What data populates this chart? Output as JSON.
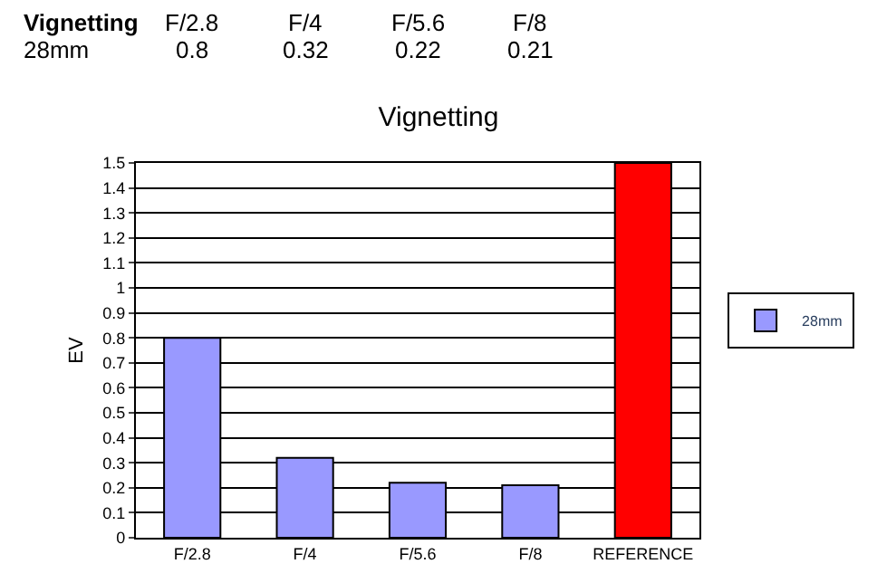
{
  "chart_data": {
    "type": "bar",
    "title": "Vignetting",
    "ylabel": "EV",
    "categories": [
      "F/2.8",
      "F/4",
      "F/5.6",
      "F/8",
      "REFERENCE"
    ],
    "series": [
      {
        "name": "28mm",
        "colors": [
          "#9999ff",
          "#9999ff",
          "#9999ff",
          "#9999ff",
          "#ff0000"
        ],
        "values": [
          0.8,
          0.32,
          0.22,
          0.21,
          1.5
        ],
        "value_labels": [
          "0.8",
          "0.32",
          "0.22",
          "0.21",
          null
        ]
      }
    ],
    "ylim": [
      0,
      1.5
    ],
    "yticks": [
      0,
      0.1,
      0.2,
      0.3,
      0.4,
      0.5,
      0.6,
      0.7,
      0.8,
      0.9,
      1,
      1.1,
      1.2,
      1.3,
      1.4,
      1.5
    ],
    "grid": "y",
    "legend": "right"
  }
}
